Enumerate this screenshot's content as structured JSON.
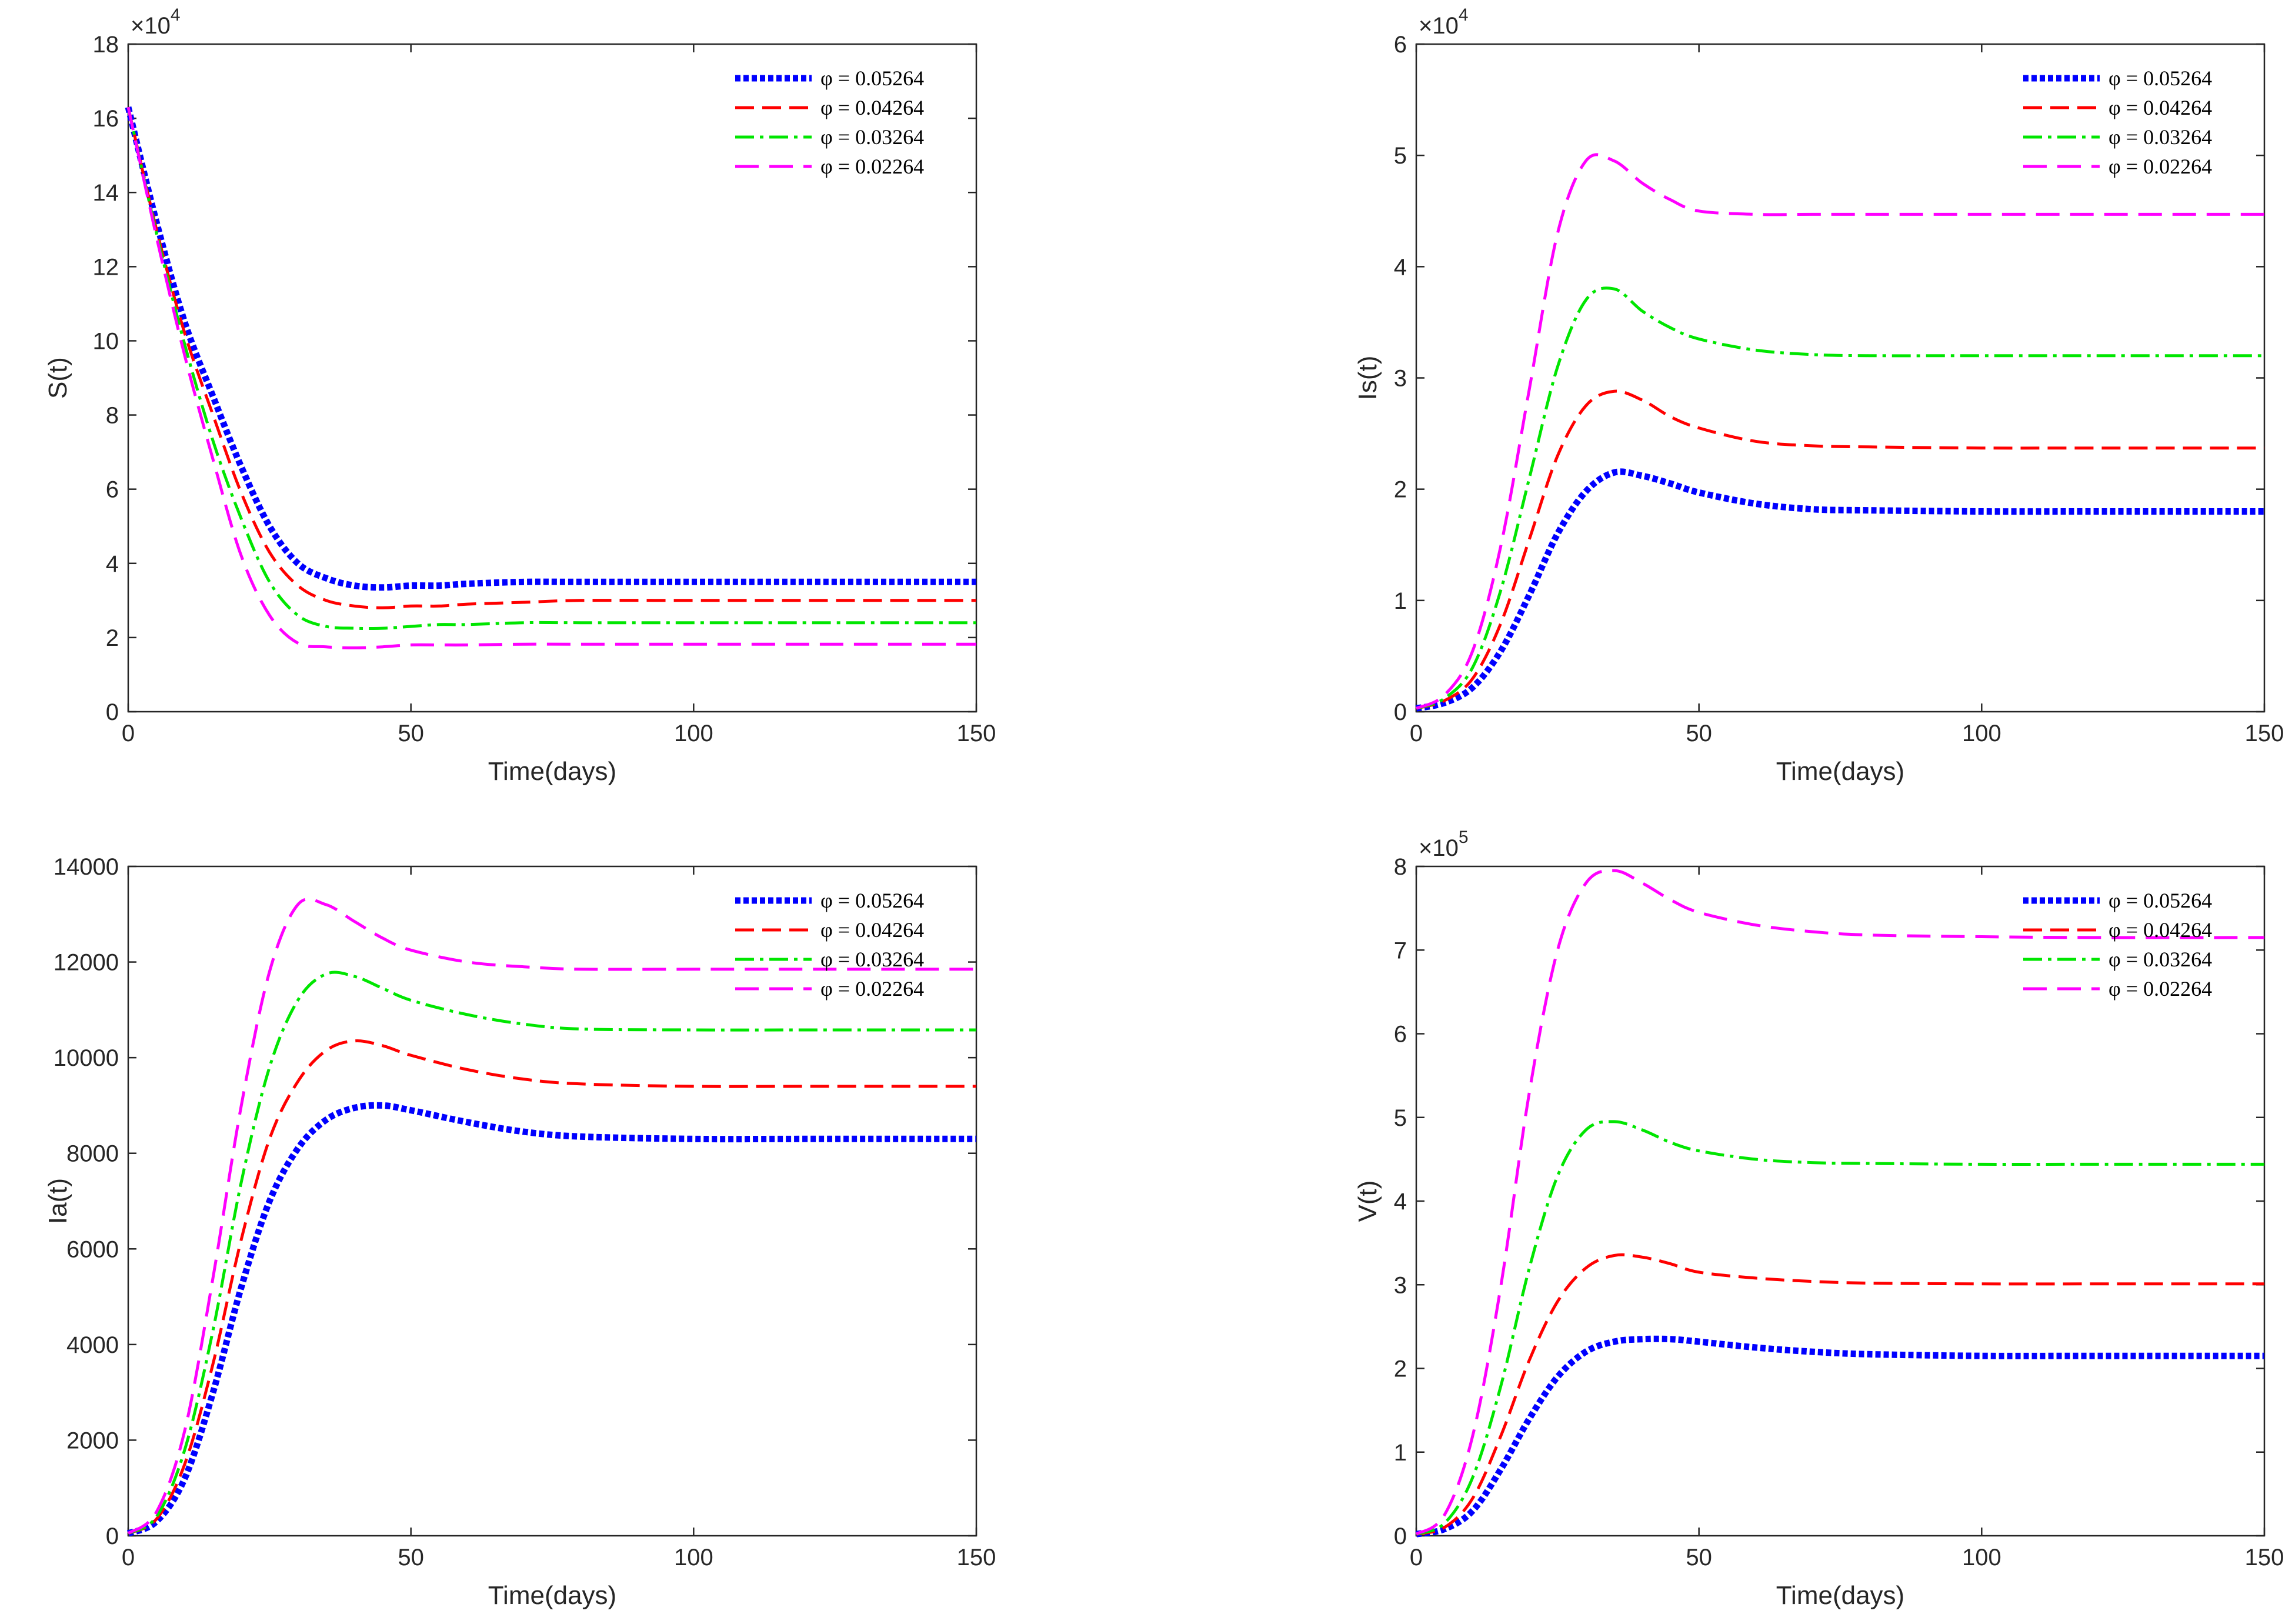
{
  "colors": {
    "phi_05264": "#0000ff",
    "phi_04264": "#ff0000",
    "phi_03264": "#00e600",
    "phi_02264": "#ff00ff",
    "axis": "#262626"
  },
  "legend_entries": [
    "φ = 0.05264",
    "φ = 0.04264",
    "φ = 0.03264",
    "φ = 0.02264"
  ],
  "chart_data": [
    {
      "type": "line",
      "id": "S",
      "xlabel": "Time(days)",
      "ylabel": "S(t)",
      "xlim": [
        0,
        150
      ],
      "ylim": [
        0,
        18
      ],
      "xticks": [
        "0",
        "50",
        "100",
        "150"
      ],
      "yticks": [
        "0",
        "2",
        "4",
        "6",
        "8",
        "10",
        "12",
        "14",
        "16",
        "18"
      ],
      "exponent_label": "×10",
      "exponent_power": "4",
      "legend_position": "top-right",
      "series": [
        {
          "name": "φ = 0.05264",
          "x": [
            0,
            5,
            10,
            15,
            20,
            25,
            30,
            35,
            40,
            45,
            50,
            55,
            60,
            70,
            80,
            100,
            120,
            150
          ],
          "values": [
            16.3,
            13.2,
            10.5,
            8.5,
            6.6,
            5.0,
            4.0,
            3.6,
            3.4,
            3.35,
            3.4,
            3.4,
            3.45,
            3.5,
            3.5,
            3.5,
            3.5,
            3.5
          ]
        },
        {
          "name": "φ = 0.04264",
          "x": [
            0,
            5,
            10,
            15,
            20,
            25,
            30,
            35,
            40,
            45,
            50,
            55,
            60,
            70,
            80,
            100,
            120,
            150
          ],
          "values": [
            16.3,
            13.0,
            10.2,
            8.0,
            5.9,
            4.3,
            3.4,
            3.0,
            2.85,
            2.8,
            2.85,
            2.85,
            2.9,
            2.95,
            3.0,
            3.0,
            3.0,
            3.0
          ]
        },
        {
          "name": "φ = 0.03264",
          "x": [
            0,
            5,
            10,
            15,
            20,
            25,
            30,
            35,
            40,
            45,
            50,
            55,
            60,
            70,
            80,
            100,
            120,
            150
          ],
          "values": [
            16.3,
            12.9,
            9.9,
            7.3,
            5.2,
            3.5,
            2.6,
            2.3,
            2.25,
            2.25,
            2.3,
            2.35,
            2.35,
            2.4,
            2.4,
            2.4,
            2.4,
            2.4
          ]
        },
        {
          "name": "φ = 0.02264",
          "x": [
            0,
            5,
            10,
            15,
            20,
            25,
            30,
            35,
            40,
            45,
            50,
            55,
            60,
            70,
            80,
            100,
            120,
            150
          ],
          "values": [
            16.3,
            12.8,
            9.6,
            6.8,
            4.2,
            2.6,
            1.85,
            1.75,
            1.72,
            1.75,
            1.8,
            1.8,
            1.8,
            1.82,
            1.82,
            1.82,
            1.82,
            1.82
          ]
        }
      ]
    },
    {
      "type": "line",
      "id": "Is",
      "xlabel": "Time(days)",
      "ylabel": "Is(t)",
      "xlim": [
        0,
        150
      ],
      "ylim": [
        0,
        6
      ],
      "xticks": [
        "0",
        "50",
        "100",
        "150"
      ],
      "yticks": [
        "0",
        "1",
        "2",
        "3",
        "4",
        "5",
        "6"
      ],
      "exponent_label": "×10",
      "exponent_power": "4",
      "legend_position": "top-right",
      "series": [
        {
          "name": "φ = 0.05264",
          "x": [
            0,
            5,
            10,
            15,
            20,
            25,
            30,
            35,
            40,
            45,
            50,
            60,
            70,
            80,
            100,
            120,
            150
          ],
          "values": [
            0.03,
            0.08,
            0.22,
            0.55,
            1.05,
            1.6,
            1.98,
            2.15,
            2.12,
            2.05,
            1.97,
            1.87,
            1.82,
            1.81,
            1.8,
            1.8,
            1.8
          ]
        },
        {
          "name": "φ = 0.04264",
          "x": [
            0,
            5,
            10,
            15,
            20,
            25,
            30,
            35,
            40,
            45,
            50,
            60,
            70,
            80,
            100,
            120,
            150
          ],
          "values": [
            0.03,
            0.1,
            0.3,
            0.8,
            1.55,
            2.3,
            2.75,
            2.88,
            2.8,
            2.65,
            2.55,
            2.43,
            2.39,
            2.38,
            2.37,
            2.37,
            2.37
          ]
        },
        {
          "name": "φ = 0.03264",
          "x": [
            0,
            5,
            10,
            15,
            20,
            25,
            30,
            35,
            40,
            45,
            50,
            60,
            70,
            80,
            100,
            120,
            150
          ],
          "values": [
            0.03,
            0.12,
            0.4,
            1.1,
            2.1,
            3.1,
            3.7,
            3.8,
            3.6,
            3.45,
            3.35,
            3.25,
            3.21,
            3.2,
            3.2,
            3.2,
            3.2
          ]
        },
        {
          "name": "φ = 0.02264",
          "x": [
            0,
            5,
            10,
            15,
            20,
            25,
            30,
            35,
            40,
            45,
            50,
            60,
            70,
            80,
            100,
            120,
            150
          ],
          "values": [
            0.03,
            0.15,
            0.55,
            1.5,
            2.9,
            4.3,
            4.95,
            4.95,
            4.75,
            4.6,
            4.5,
            4.47,
            4.47,
            4.47,
            4.47,
            4.47,
            4.47
          ]
        }
      ]
    },
    {
      "type": "line",
      "id": "Ia",
      "xlabel": "Time(days)",
      "ylabel": "Ia(t)",
      "xlim": [
        0,
        150
      ],
      "ylim": [
        0,
        14000
      ],
      "xticks": [
        "0",
        "50",
        "100",
        "150"
      ],
      "yticks": [
        "0",
        "2000",
        "4000",
        "6000",
        "8000",
        "10000",
        "12000",
        "14000"
      ],
      "legend_position": "top-right",
      "series": [
        {
          "name": "φ = 0.05264",
          "x": [
            0,
            5,
            10,
            15,
            20,
            25,
            30,
            35,
            40,
            45,
            50,
            60,
            70,
            80,
            100,
            120,
            150
          ],
          "values": [
            50,
            300,
            1200,
            3000,
            5200,
            7000,
            8100,
            8700,
            8950,
            9000,
            8900,
            8650,
            8450,
            8350,
            8300,
            8300,
            8300
          ]
        },
        {
          "name": "φ = 0.04264",
          "x": [
            0,
            5,
            10,
            15,
            20,
            25,
            30,
            35,
            40,
            45,
            50,
            60,
            70,
            80,
            100,
            120,
            150
          ],
          "values": [
            50,
            350,
            1500,
            3600,
            6200,
            8300,
            9500,
            10150,
            10350,
            10250,
            10050,
            9750,
            9550,
            9450,
            9400,
            9400,
            9400
          ]
        },
        {
          "name": "φ = 0.03264",
          "x": [
            0,
            5,
            10,
            15,
            20,
            25,
            30,
            35,
            40,
            45,
            50,
            60,
            70,
            80,
            100,
            120,
            150
          ],
          "values": [
            50,
            400,
            1800,
            4300,
            7400,
            9800,
            11200,
            11750,
            11700,
            11450,
            11200,
            10900,
            10700,
            10600,
            10580,
            10580,
            10580
          ]
        },
        {
          "name": "φ = 0.02264",
          "x": [
            0,
            5,
            10,
            15,
            20,
            25,
            30,
            35,
            40,
            45,
            50,
            60,
            70,
            80,
            100,
            120,
            150
          ],
          "values": [
            50,
            500,
            2200,
            5400,
            9000,
            11800,
            13200,
            13200,
            12850,
            12500,
            12250,
            12000,
            11900,
            11850,
            11850,
            11850,
            11850
          ]
        }
      ]
    },
    {
      "type": "line",
      "id": "V",
      "xlabel": "Time(days)",
      "ylabel": "V(t)",
      "xlim": [
        0,
        150
      ],
      "ylim": [
        0,
        8
      ],
      "xticks": [
        "0",
        "50",
        "100",
        "150"
      ],
      "yticks": [
        "0",
        "1",
        "2",
        "3",
        "4",
        "5",
        "6",
        "7",
        "8"
      ],
      "exponent_label": "×10",
      "exponent_power": "5",
      "legend_position": "top-right",
      "series": [
        {
          "name": "φ = 0.05264",
          "x": [
            0,
            5,
            10,
            15,
            20,
            25,
            30,
            35,
            40,
            45,
            50,
            60,
            70,
            80,
            100,
            120,
            150
          ],
          "values": [
            0.02,
            0.08,
            0.3,
            0.8,
            1.4,
            1.9,
            2.2,
            2.32,
            2.35,
            2.35,
            2.32,
            2.25,
            2.2,
            2.17,
            2.15,
            2.15,
            2.15
          ]
        },
        {
          "name": "φ = 0.04264",
          "x": [
            0,
            5,
            10,
            15,
            20,
            25,
            30,
            35,
            40,
            45,
            50,
            60,
            70,
            80,
            100,
            120,
            150
          ],
          "values": [
            0.02,
            0.1,
            0.45,
            1.2,
            2.1,
            2.8,
            3.2,
            3.35,
            3.33,
            3.25,
            3.15,
            3.08,
            3.04,
            3.02,
            3.01,
            3.01,
            3.01
          ]
        },
        {
          "name": "φ = 0.03264",
          "x": [
            0,
            5,
            10,
            15,
            20,
            25,
            30,
            35,
            40,
            45,
            50,
            60,
            70,
            80,
            100,
            120,
            150
          ],
          "values": [
            0.02,
            0.15,
            0.7,
            1.8,
            3.2,
            4.3,
            4.85,
            4.95,
            4.85,
            4.7,
            4.6,
            4.5,
            4.46,
            4.45,
            4.44,
            4.44,
            4.44
          ]
        },
        {
          "name": "φ = 0.02264",
          "x": [
            0,
            5,
            10,
            15,
            20,
            25,
            30,
            35,
            40,
            45,
            50,
            60,
            70,
            80,
            100,
            120,
            150
          ],
          "values": [
            0.02,
            0.25,
            1.2,
            3.0,
            5.3,
            7.0,
            7.8,
            7.95,
            7.8,
            7.6,
            7.45,
            7.3,
            7.22,
            7.18,
            7.16,
            7.15,
            7.15
          ]
        }
      ]
    }
  ]
}
